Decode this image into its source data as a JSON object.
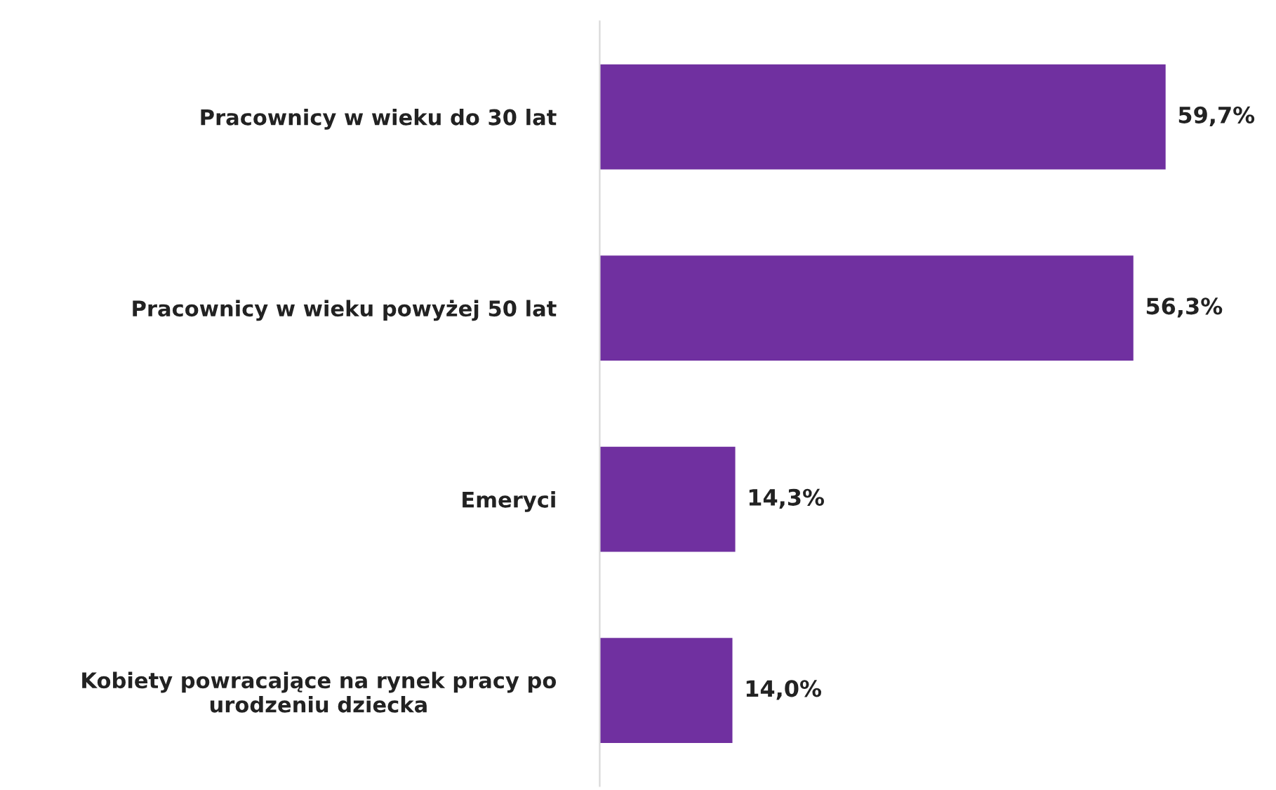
{
  "chart_data": {
    "type": "bar",
    "orientation": "horizontal",
    "categories": [
      "Pracownicy w wieku do 30 lat",
      "Pracownicy w wieku powyżej 50 lat",
      "Emeryci",
      "Kobiety powracające na rynek pracy po\nurodzeniu dziecka"
    ],
    "values": [
      59.7,
      56.3,
      14.3,
      14.0
    ],
    "value_labels": [
      "59,7%",
      "56,3%",
      "14,3%",
      "14,0%"
    ],
    "color": "#7030a0",
    "grid": false,
    "legend": false,
    "tick_labels": "y"
  }
}
